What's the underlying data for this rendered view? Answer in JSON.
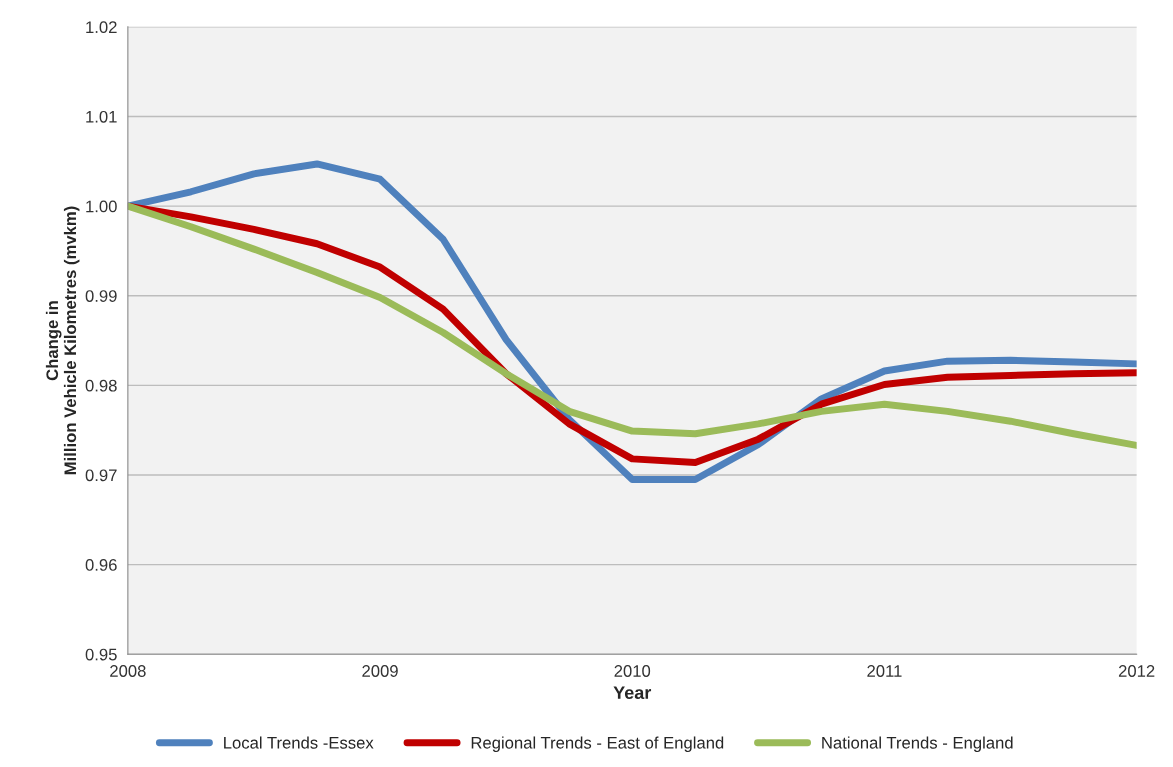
{
  "chart_data": {
    "type": "line",
    "xlabel": "Year",
    "ylabel": "Change in\nMillion Vehicle Kilometres (mvkm)",
    "x": [
      2008,
      2008.25,
      2008.5,
      2008.75,
      2009,
      2009.25,
      2009.5,
      2009.75,
      2010,
      2010.25,
      2010.5,
      2010.75,
      2011,
      2011.25,
      2011.5,
      2011.75,
      2012
    ],
    "series": [
      {
        "name": "Local Trends -Essex",
        "color": "#4f81bd",
        "values": [
          1.0,
          1.0016,
          1.0036,
          1.0047,
          1.003,
          0.9963,
          0.9851,
          0.9762,
          0.9695,
          0.9695,
          0.9734,
          0.9785,
          0.9816,
          0.9827,
          0.9828,
          0.9826,
          0.9824
        ]
      },
      {
        "name": "Regional Trends - East of England",
        "color": "#c00000",
        "values": [
          1.0,
          0.9988,
          0.9974,
          0.9958,
          0.9932,
          0.9885,
          0.9813,
          0.9757,
          0.9718,
          0.9714,
          0.974,
          0.9779,
          0.9801,
          0.9809,
          0.9811,
          0.9813,
          0.9814
        ]
      },
      {
        "name": "National Trends - England",
        "color": "#9bbb59",
        "values": [
          1.0,
          0.9977,
          0.9952,
          0.9926,
          0.9898,
          0.9859,
          0.9813,
          0.9771,
          0.9749,
          0.9746,
          0.9757,
          0.9771,
          0.9779,
          0.9771,
          0.976,
          0.9746,
          0.9733
        ]
      }
    ],
    "xlim": [
      2008,
      2012
    ],
    "xticks": [
      2008,
      2009,
      2010,
      2011,
      2012
    ],
    "ylim": [
      0.95,
      1.02
    ],
    "yticks": [
      0.95,
      0.96,
      0.97,
      0.98,
      0.99,
      {
        "value": 1,
        "label": "1.00"
      },
      1.01,
      1.02
    ],
    "grid": "y",
    "legend": "bottom",
    "marker": "none",
    "line_style": "solid"
  }
}
